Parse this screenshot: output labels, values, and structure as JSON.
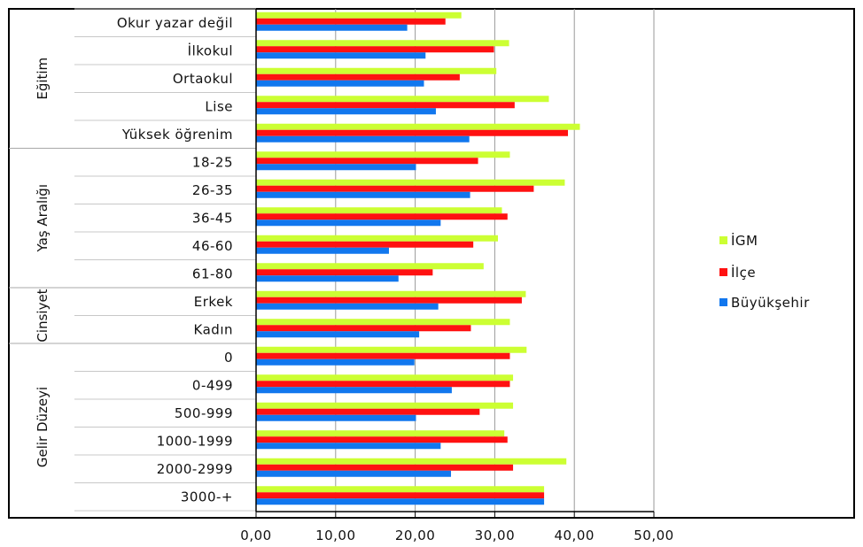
{
  "chart_data": {
    "type": "bar",
    "orientation": "horizontal",
    "title": "",
    "xlabel": "",
    "ylabel": "",
    "xlim": [
      0,
      50
    ],
    "x_ticks": [
      "0,00",
      "10,00",
      "20,00",
      "30,00",
      "40,00",
      "50,00"
    ],
    "grid": true,
    "legend_position": "right",
    "groups": [
      {
        "name": "Eğitim",
        "categories": [
          "Okur yazar değil",
          "İlkokul",
          "Ortaokul",
          "Lise",
          "Yüksek öğrenim"
        ]
      },
      {
        "name": "Yaş Aralığı",
        "categories": [
          "18-25",
          "26-35",
          "36-45",
          "46-60",
          "61-80"
        ]
      },
      {
        "name": "Cinsiyet",
        "categories": [
          "Erkek",
          "Kadın"
        ]
      },
      {
        "name": "Gelir Düzeyi",
        "categories": [
          "0",
          "0-499",
          "500-999",
          "1000-1999",
          "2000-2999",
          "3000-+"
        ]
      }
    ],
    "categories": [
      "Okur yazar değil",
      "İlkokul",
      "Ortaokul",
      "Lise",
      "Yüksek öğrenim",
      "18-25",
      "26-35",
      "36-45",
      "46-60",
      "61-80",
      "Erkek",
      "Kadın",
      "0",
      "0-499",
      "500-999",
      "1000-1999",
      "2000-2999",
      "3000-+"
    ],
    "series": [
      {
        "name": "İGM",
        "color": "#ccff33",
        "values": [
          25.8,
          31.8,
          30.2,
          36.8,
          40.7,
          31.9,
          38.8,
          30.9,
          30.4,
          28.6,
          33.9,
          31.9,
          34.0,
          32.3,
          32.3,
          31.2,
          39.0,
          36.2
        ]
      },
      {
        "name": "İlçe",
        "color": "#ff1111",
        "values": [
          23.8,
          29.9,
          25.6,
          32.5,
          39.2,
          27.9,
          34.9,
          31.6,
          27.3,
          22.2,
          33.4,
          27.0,
          31.9,
          31.9,
          28.1,
          31.6,
          32.3,
          36.2
        ]
      },
      {
        "name": "Büyükşehir",
        "color": "#1177ee",
        "values": [
          19.0,
          21.3,
          21.1,
          22.6,
          26.8,
          20.1,
          26.9,
          23.2,
          16.7,
          17.9,
          22.9,
          20.5,
          19.9,
          24.6,
          20.1,
          23.2,
          24.5,
          36.2
        ]
      }
    ]
  }
}
